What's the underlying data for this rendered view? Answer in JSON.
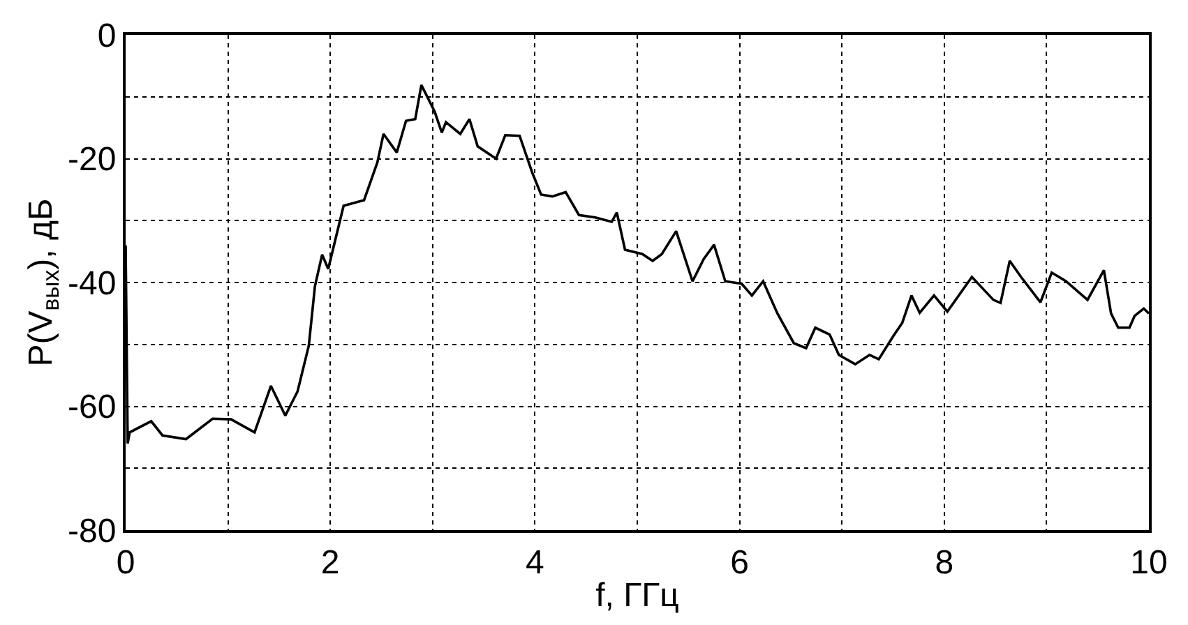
{
  "chart_data": {
    "type": "line",
    "xlabel": "f, ГГц",
    "ylabel": "P(V$_{вых}$), дБ",
    "x": [
      0,
      0.02,
      0.04,
      0.25,
      0.36,
      0.59,
      0.85,
      1.03,
      1.26,
      1.42,
      1.56,
      1.68,
      1.79,
      1.85,
      1.92,
      1.98,
      2.13,
      2.33,
      2.46,
      2.52,
      2.65,
      2.74,
      2.83,
      2.89,
      3.02,
      3.09,
      3.13,
      3.27,
      3.36,
      3.44,
      3.62,
      3.71,
      3.85,
      3.97,
      4.06,
      4.17,
      4.3,
      4.43,
      4.59,
      4.75,
      4.8,
      4.88,
      5.05,
      5.15,
      5.24,
      5.38,
      5.54,
      5.65,
      5.75,
      5.86,
      6.02,
      6.12,
      6.23,
      6.37,
      6.53,
      6.65,
      6.74,
      6.88,
      6.97,
      7.13,
      7.27,
      7.36,
      7.5,
      7.59,
      7.68,
      7.76,
      7.9,
      8.03,
      8.27,
      8.48,
      8.55,
      8.64,
      8.75,
      8.94,
      9.05,
      9.19,
      9.4,
      9.56,
      9.63,
      9.7,
      9.81,
      9.86,
      9.95,
      10
    ],
    "series": [
      {
        "color": "#000000",
        "values": [
          -34,
          -66,
          -64.2,
          -62.4,
          -64.7,
          -65.3,
          -62,
          -62.1,
          -64.2,
          -56.7,
          -61.5,
          -57.6,
          -50.2,
          -40.6,
          -35.5,
          -37.8,
          -27.6,
          -26.7,
          -20.6,
          -16,
          -19,
          -13.9,
          -13.6,
          -8.1,
          -12.4,
          -15.8,
          -14.1,
          -16,
          -13.6,
          -18,
          -20,
          -16.2,
          -16.3,
          -22.1,
          -25.8,
          -26.1,
          -25.4,
          -29.1,
          -29.5,
          -30.2,
          -28.7,
          -34.7,
          -35.4,
          -36.5,
          -35.4,
          -31.7,
          -39.8,
          -36.2,
          -33.9,
          -39.8,
          -40.2,
          -42.1,
          -39.8,
          -45,
          -49.8,
          -50.6,
          -47.3,
          -48.4,
          -51.7,
          -53.2,
          -51.7,
          -52.4,
          -48.7,
          -46.5,
          -42.1,
          -44.9,
          -42.1,
          -44.7,
          -39.1,
          -42.8,
          -43.3,
          -36.5,
          -39.1,
          -43.2,
          -38.4,
          -39.8,
          -42.8,
          -38,
          -45,
          -47.3,
          -47.3,
          -45.4,
          -44.2,
          -45
        ]
      }
    ],
    "xlim": [
      0,
      10
    ],
    "ylim": [
      -80,
      0
    ],
    "xticks": [
      0,
      {
        "value": 1,
        "label": null
      },
      2,
      {
        "value": 3,
        "label": null
      },
      4,
      {
        "value": 5,
        "label": null
      },
      6,
      {
        "value": 7,
        "label": null
      },
      8,
      {
        "value": 9,
        "label": null
      },
      10
    ],
    "yticks": [
      -80,
      {
        "value": -70,
        "label": null
      },
      -60,
      {
        "value": -50,
        "label": null
      },
      -40,
      {
        "value": -30,
        "label": null
      },
      -20,
      {
        "value": -10,
        "label": null
      },
      0
    ],
    "grid": true,
    "legend": false,
    "marker": "none",
    "line_style": "solid"
  }
}
